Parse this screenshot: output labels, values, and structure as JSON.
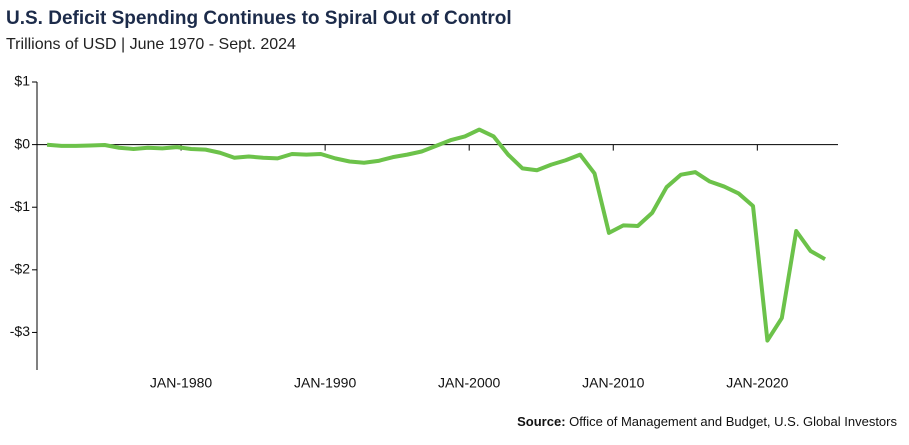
{
  "chart_data": {
    "type": "line",
    "title": "U.S. Deficit Spending Continues to Spiral Out of Control",
    "subtitle": "Trillions of USD | June 1970 - Sept. 2024",
    "source_label": "Source:",
    "source": "Office of Management and Budget, U.S. Global Investors",
    "x": [
      1970.7,
      1971.7,
      1972.7,
      1973.7,
      1974.7,
      1975.7,
      1976.7,
      1977.7,
      1978.7,
      1979.7,
      1980.7,
      1981.7,
      1982.7,
      1983.7,
      1984.7,
      1985.7,
      1986.7,
      1987.7,
      1988.7,
      1989.7,
      1990.7,
      1991.7,
      1992.7,
      1993.7,
      1994.7,
      1995.7,
      1996.7,
      1997.7,
      1998.7,
      1999.7,
      2000.7,
      2001.7,
      2002.7,
      2003.7,
      2004.7,
      2005.7,
      2006.7,
      2007.7,
      2008.7,
      2009.7,
      2010.7,
      2011.7,
      2012.7,
      2013.7,
      2014.7,
      2015.7,
      2016.7,
      2017.7,
      2018.7,
      2019.7,
      2020.7,
      2021.7,
      2022.7,
      2023.7,
      2024.7
    ],
    "series": [
      {
        "name": "Deficit",
        "color": "#6cc24a",
        "values": [
          -0.003,
          -0.02,
          -0.02,
          -0.015,
          -0.006,
          -0.05,
          -0.07,
          -0.05,
          -0.06,
          -0.04,
          -0.07,
          -0.08,
          -0.13,
          -0.21,
          -0.19,
          -0.21,
          -0.22,
          -0.15,
          -0.16,
          -0.15,
          -0.22,
          -0.27,
          -0.29,
          -0.26,
          -0.2,
          -0.16,
          -0.11,
          -0.02,
          0.07,
          0.13,
          0.24,
          0.13,
          -0.16,
          -0.38,
          -0.41,
          -0.32,
          -0.25,
          -0.16,
          -0.46,
          -1.41,
          -1.29,
          -1.3,
          -1.09,
          -0.68,
          -0.48,
          -0.44,
          -0.59,
          -0.67,
          -0.78,
          -0.98,
          -3.13,
          -2.77,
          -1.38,
          -1.7,
          -1.83
        ]
      }
    ],
    "xlim": [
      1970,
      2025.6
    ],
    "xticks": [
      {
        "value": 1980,
        "label": "JAN-1980"
      },
      {
        "value": 1990,
        "label": "JAN-1990"
      },
      {
        "value": 2000,
        "label": "JAN-2000"
      },
      {
        "value": 2010,
        "label": "JAN-2010"
      },
      {
        "value": 2020,
        "label": "JAN-2020"
      }
    ],
    "ylim": [
      -3.6,
      1
    ],
    "yticks": [
      {
        "value": 1,
        "label": "$1"
      },
      {
        "value": 0,
        "label": "$0"
      },
      {
        "value": -1,
        "label": "-$1"
      },
      {
        "value": -2,
        "label": "-$2"
      },
      {
        "value": -3,
        "label": "-$3"
      }
    ]
  }
}
